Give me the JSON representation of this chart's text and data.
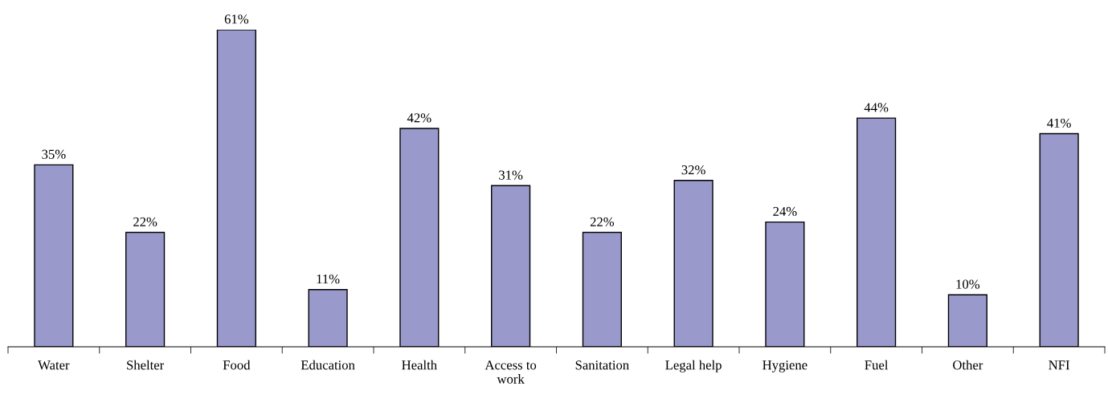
{
  "chart_data": {
    "type": "bar",
    "categories": [
      "Water",
      "Shelter",
      "Food",
      "Education",
      "Health",
      "Access to\nwork",
      "Sanitation",
      "Legal help",
      "Hygiene",
      "Fuel",
      "Other",
      "NFI"
    ],
    "values": [
      35,
      22,
      61,
      11,
      42,
      31,
      22,
      32,
      24,
      44,
      10,
      41
    ],
    "value_labels": [
      "35%",
      "22%",
      "61%",
      "11%",
      "42%",
      "31%",
      "22%",
      "32%",
      "24%",
      "44%",
      "10%",
      "41%"
    ],
    "color": "#9999cc",
    "grid": false
  }
}
